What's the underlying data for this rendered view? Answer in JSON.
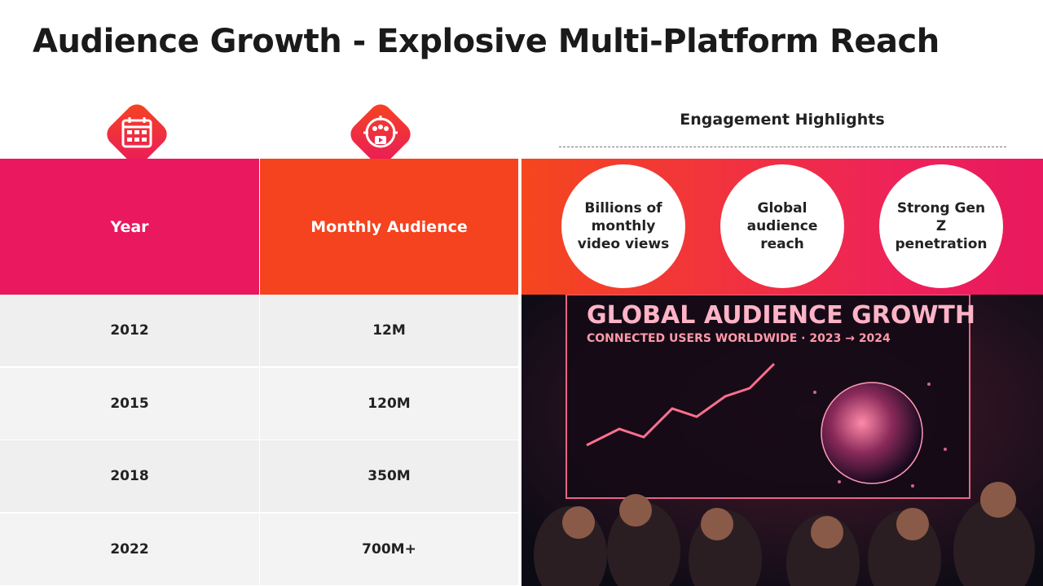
{
  "header": {
    "title": "Audience Growth - Explosive Multi-Platform Reach"
  },
  "table": {
    "columns": [
      "Year",
      "Monthly Audience"
    ],
    "rows": [
      [
        "2012",
        "12M"
      ],
      [
        "2015",
        "120M"
      ],
      [
        "2018",
        "350M"
      ],
      [
        "2022",
        "700M+"
      ]
    ]
  },
  "highlights": {
    "title": "Engagement Highlights",
    "items": [
      "Billions of monthly video views",
      "Global audience reach",
      "Strong Gen Z penetration"
    ]
  },
  "image": {
    "title": "GLOBAL AUDIENCE GROWTH",
    "subtitle": "CONNECTED USERS WORLDWIDE · 2023 → 2024"
  }
}
